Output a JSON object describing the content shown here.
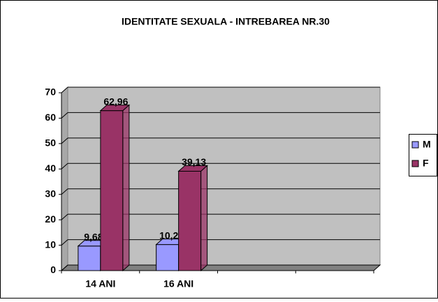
{
  "chart_data": {
    "type": "bar3d",
    "title": "IDENTITATE SEXUALA - INTREBAREA NR.30",
    "categories": [
      "14 ANI",
      "16 ANI",
      null,
      null
    ],
    "series": [
      {
        "name": "M",
        "color": "#9999ff",
        "values": [
          9.68,
          10.26,
          null,
          null
        ],
        "value_labels": [
          "9,68",
          "10,26",
          null,
          null
        ]
      },
      {
        "name": "F",
        "color": "#993366",
        "values": [
          62.96,
          39.13,
          null,
          null
        ],
        "value_labels": [
          "62,96",
          "39,13",
          null,
          null
        ]
      }
    ],
    "ylim": [
      0,
      70
    ],
    "yticks": [
      0,
      10,
      20,
      30,
      40,
      50,
      60,
      70
    ],
    "grid": true,
    "legend": "right"
  }
}
